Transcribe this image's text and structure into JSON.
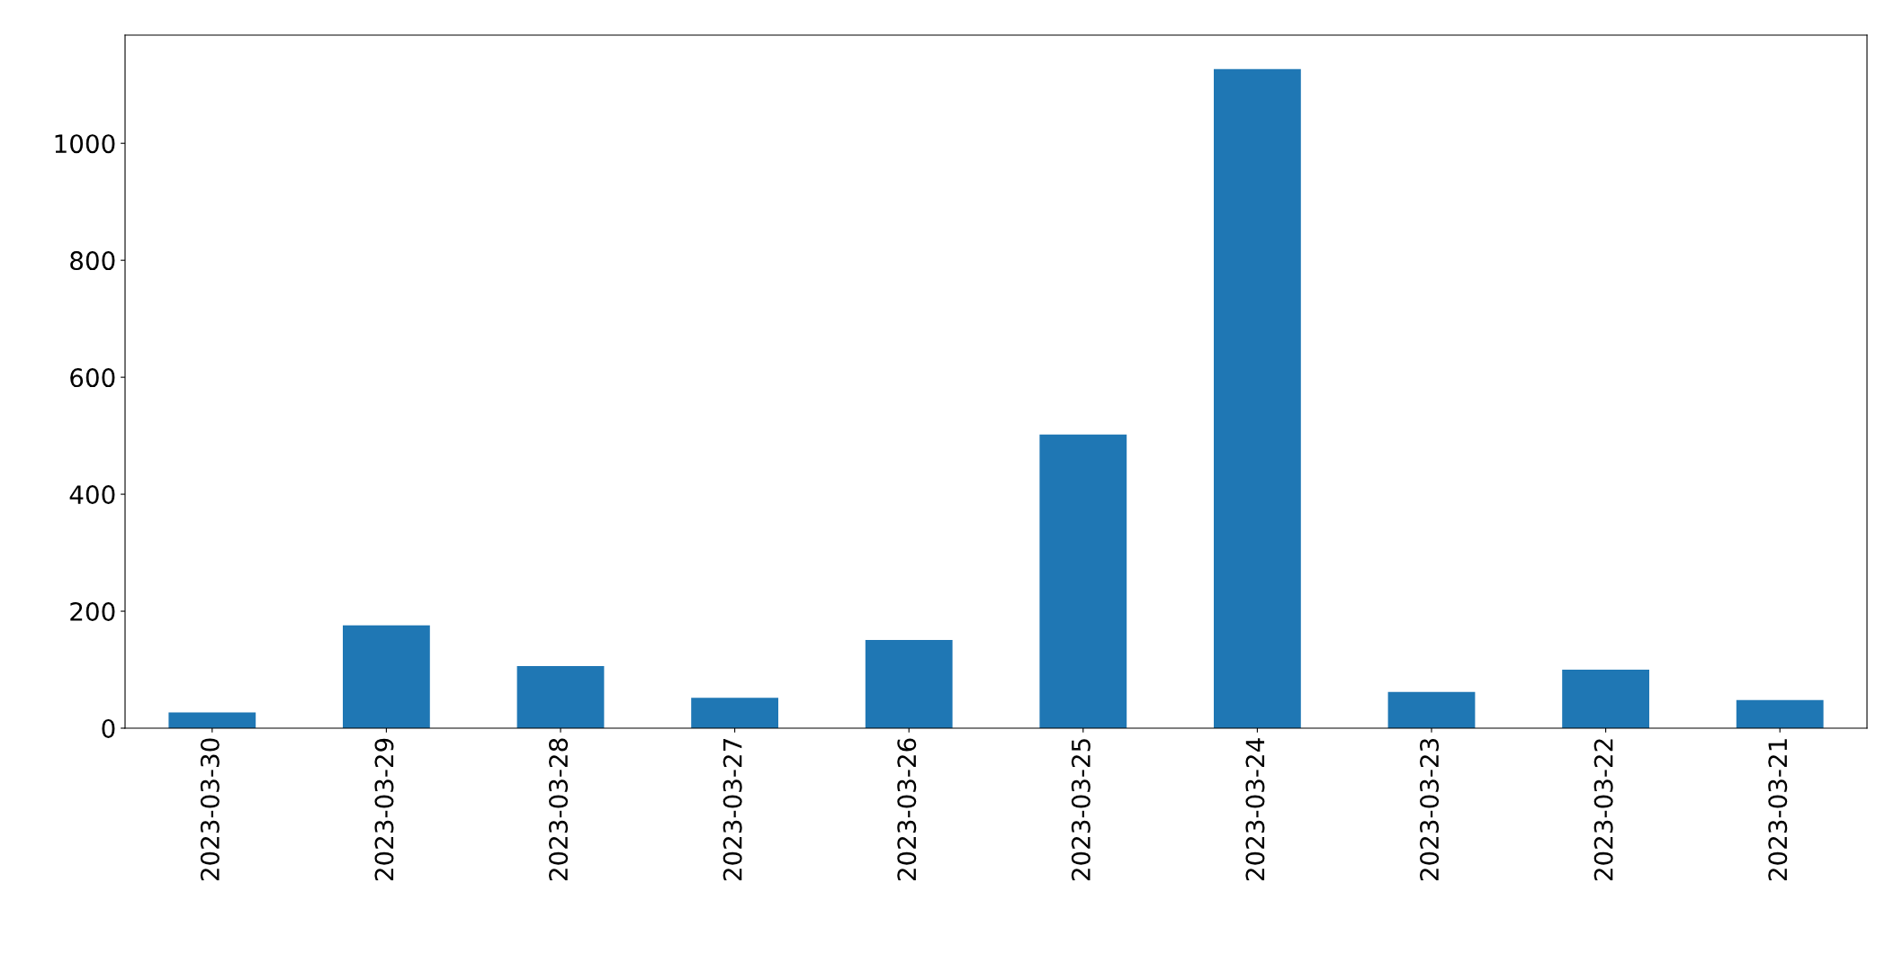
{
  "chart_data": {
    "type": "bar",
    "categories": [
      "2023-03-30",
      "2023-03-29",
      "2023-03-28",
      "2023-03-27",
      "2023-03-26",
      "2023-03-25",
      "2023-03-24",
      "2023-03-23",
      "2023-03-22",
      "2023-03-21"
    ],
    "values": [
      27,
      176,
      106,
      52,
      151,
      502,
      1127,
      62,
      100,
      48
    ],
    "color": "#1f77b4",
    "ylim": [
      0,
      1185
    ],
    "yticks": [
      0,
      200,
      400,
      600,
      800,
      1000
    ],
    "grid": false,
    "legend": false
  }
}
